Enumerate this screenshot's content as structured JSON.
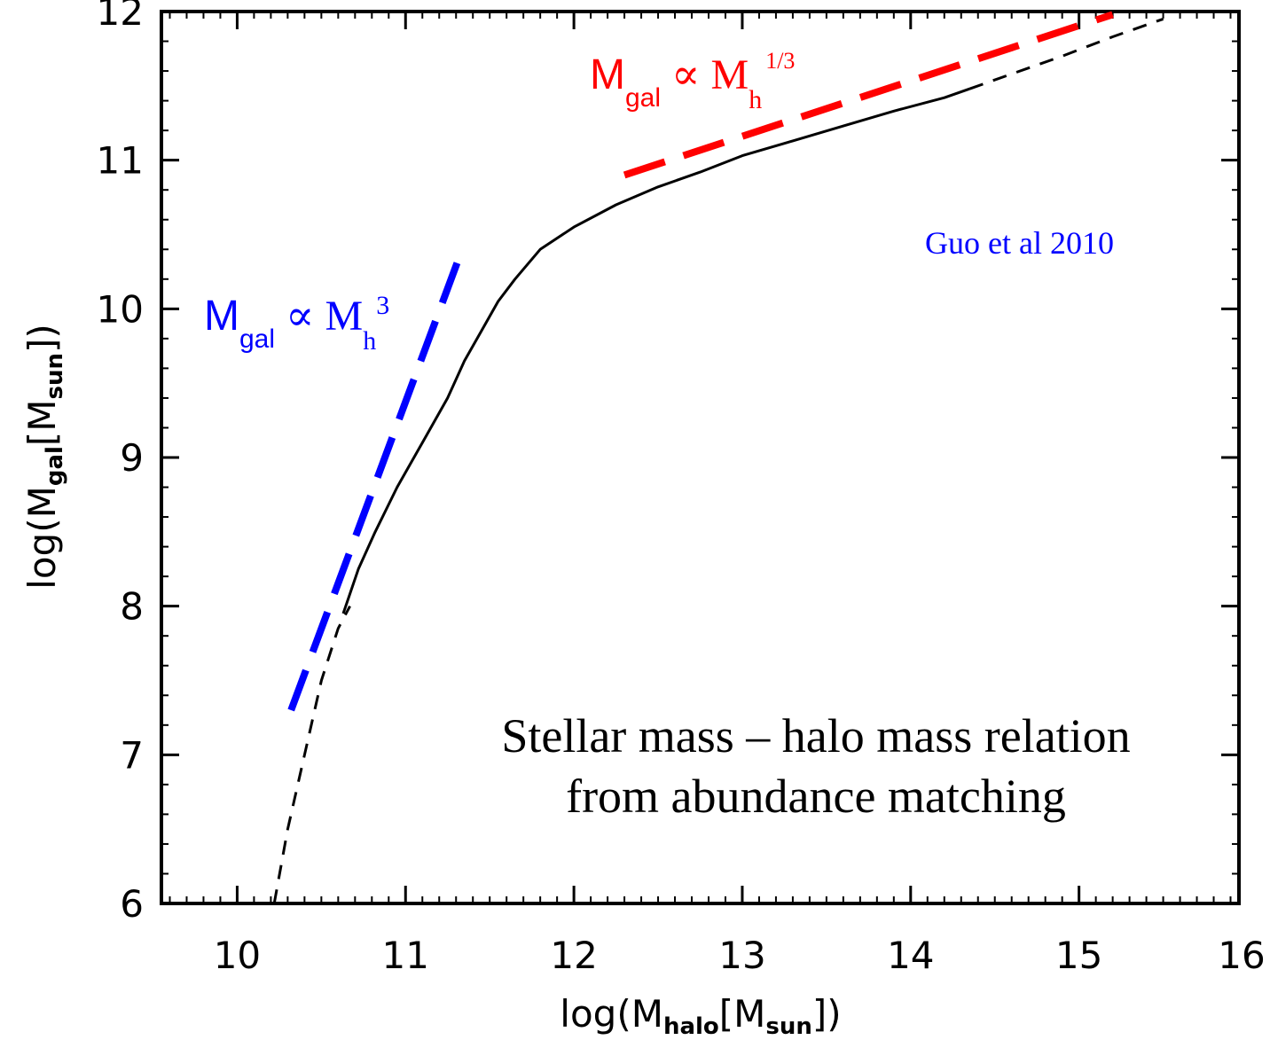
{
  "chart_data": {
    "type": "line",
    "xlabel": {
      "pre": "log(M",
      "sub": "halo",
      "mid": "[M",
      "sub2": "sun",
      "post": "])"
    },
    "ylabel": {
      "pre": "log(M",
      "sub": "gal",
      "mid": "[M",
      "sub2": "sun",
      "post": "])"
    },
    "xlim": [
      9.55,
      15.95
    ],
    "ylim": [
      6.0,
      12.0
    ],
    "xticks": [
      "10",
      "11",
      "12",
      "13",
      "14",
      "15",
      "16"
    ],
    "yticks": [
      "6",
      "7",
      "8",
      "9",
      "10",
      "11",
      "12"
    ],
    "grid": false,
    "series": [
      {
        "style": "solid",
        "color": "#000000",
        "x": [
          10.63,
          10.72,
          10.82,
          10.95,
          11.1,
          11.25,
          11.35,
          11.45,
          11.55,
          11.65,
          11.8,
          12.0,
          12.25,
          12.5,
          12.75,
          13.0,
          13.3,
          13.6,
          13.9,
          14.2,
          14.35
        ],
        "y": [
          7.95,
          8.25,
          8.5,
          8.8,
          9.1,
          9.4,
          9.65,
          9.85,
          10.05,
          10.2,
          10.4,
          10.55,
          10.7,
          10.82,
          10.92,
          11.03,
          11.13,
          11.23,
          11.33,
          11.42,
          11.48
        ]
      },
      {
        "style": "dashed",
        "color": "#000000",
        "x": [
          10.22,
          10.3,
          10.4,
          10.5,
          10.6,
          10.67
        ],
        "y": [
          6.0,
          6.5,
          7.0,
          7.5,
          7.85,
          8.0
        ]
      },
      {
        "style": "dashed",
        "color": "#000000",
        "x": [
          14.35,
          14.6,
          14.9,
          15.2,
          15.5
        ],
        "y": [
          11.48,
          11.58,
          11.7,
          11.83,
          11.95
        ]
      },
      {
        "style": "dashed",
        "color": "#0000ff",
        "x": [
          10.32,
          11.32
        ],
        "y": [
          7.3,
          10.35
        ]
      },
      {
        "style": "dashed",
        "color": "#ff0000",
        "x": [
          12.3,
          15.2
        ],
        "y": [
          10.9,
          11.98
        ]
      }
    ],
    "annotations": {
      "blue_relation": {
        "base": "M",
        "sub": "gal",
        "mid": " ∝ M",
        "sub2": "h",
        "sup": "3",
        "color": "#0000ff"
      },
      "red_relation": {
        "base": "M",
        "sub": "gal",
        "mid": " ∝ M",
        "sub2": "h",
        "sup": "1/3",
        "color": "#ff0000"
      },
      "citation": {
        "text": "Guo et al 2010",
        "color": "#0000ff"
      },
      "title_line1": "Stellar mass – halo mass relation",
      "title_line2": "from abundance matching"
    }
  }
}
